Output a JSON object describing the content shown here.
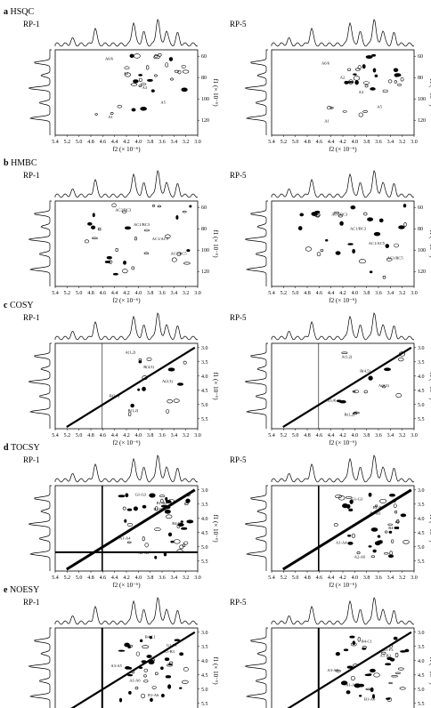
{
  "figure": {
    "panels": [
      {
        "letter": "a",
        "technique": "HSQC",
        "samples": [
          "RP-1",
          "RP-5"
        ],
        "x_ticks": [
          "5.4",
          "5.2",
          "5.0",
          "4.8",
          "4.6",
          "4.4",
          "4.2",
          "4.0",
          "3.8",
          "3.6",
          "3.4",
          "3.2",
          "3.0"
        ],
        "x_axis_label": "f2 (× 10⁻⁶)",
        "y_ticks": [
          "60",
          "80",
          "100",
          "120"
        ],
        "y_axis_label": "f1 (× 10⁻⁶)",
        "annotations": [
          "A6/6",
          "A2",
          "A3",
          "A5",
          "A1"
        ]
      },
      {
        "letter": "b",
        "technique": "HMBC",
        "samples": [
          "RP-1",
          "RP-5"
        ],
        "x_ticks": [
          "5.4",
          "5.2",
          "5.0",
          "4.8",
          "4.6",
          "4.4",
          "4.2",
          "4.0",
          "3.8",
          "3.6",
          "3.4",
          "3.2",
          "3.0"
        ],
        "x_axis_label": "f2 (× 10⁻⁶)",
        "y_ticks": [
          "60",
          "80",
          "100",
          "120"
        ],
        "y_axis_label": "f1 (× 10⁻⁶)",
        "annotations": [
          "AC3/BC3",
          "AC1/BC3",
          "AC1/AC5",
          "AC1/BC5"
        ]
      },
      {
        "letter": "c",
        "technique": "COSY",
        "samples": [
          "RP-1",
          "RP-5"
        ],
        "x_ticks": [
          "5.4",
          "5.2",
          "5.0",
          "4.8",
          "4.6",
          "4.4",
          "4.2",
          "4.0",
          "3.8",
          "3.6",
          "3.4",
          "3.2",
          "3.0"
        ],
        "x_axis_label": "f2 (× 10⁻⁶)",
        "y_ticks": [
          "3.0",
          "3.5",
          "4.0",
          "4.5",
          "5.0",
          "5.5"
        ],
        "y_axis_label": "f1 (× 10⁻⁶)",
        "annotations": [
          "A(1,2)",
          "B(4,5)",
          "A(2,3)",
          "B(3,4)",
          "B(1,2)"
        ]
      },
      {
        "letter": "d",
        "technique": "TOCSY",
        "samples": [
          "RP-1",
          "RP-5"
        ],
        "x_ticks": [
          "5.4",
          "5.2",
          "5.0",
          "4.8",
          "4.6",
          "4.4",
          "4.2",
          "4.0",
          "3.8",
          "3.6",
          "3.4",
          "3.2",
          "3.0"
        ],
        "x_axis_label": "f2 (× 10⁻⁶)",
        "y_ticks": [
          "3.0",
          "3.5",
          "4.0",
          "4.5",
          "5.0",
          "5.5"
        ],
        "y_axis_label": "f1 (× 10⁻⁶)",
        "annotations": [
          "G1-G3",
          "B1-B3",
          "B4-B5",
          "A1-A4",
          "A2-A6",
          "B1-B4"
        ]
      },
      {
        "letter": "e",
        "technique": "NOESY",
        "samples": [
          "RP-1",
          "RP-5"
        ],
        "x_ticks": [
          "5.4",
          "5.2",
          "5.0",
          "4.8",
          "4.6",
          "4.4",
          "4.2",
          "4.0",
          "3.8",
          "3.6",
          "3.4",
          "3.2",
          "3.0"
        ],
        "x_axis_label": "f2 (× 10⁻⁶)",
        "y_ticks": [
          "3.0",
          "3.5",
          "4.0",
          "4.5",
          "5.0",
          "5.5"
        ],
        "y_axis_label": "f1 (× 10⁻⁶)",
        "annotations": [
          "B4-C1",
          "A1-B3",
          "A3-A5",
          "A1-A6",
          "B1-A6",
          "G1-F3"
        ]
      }
    ]
  }
}
